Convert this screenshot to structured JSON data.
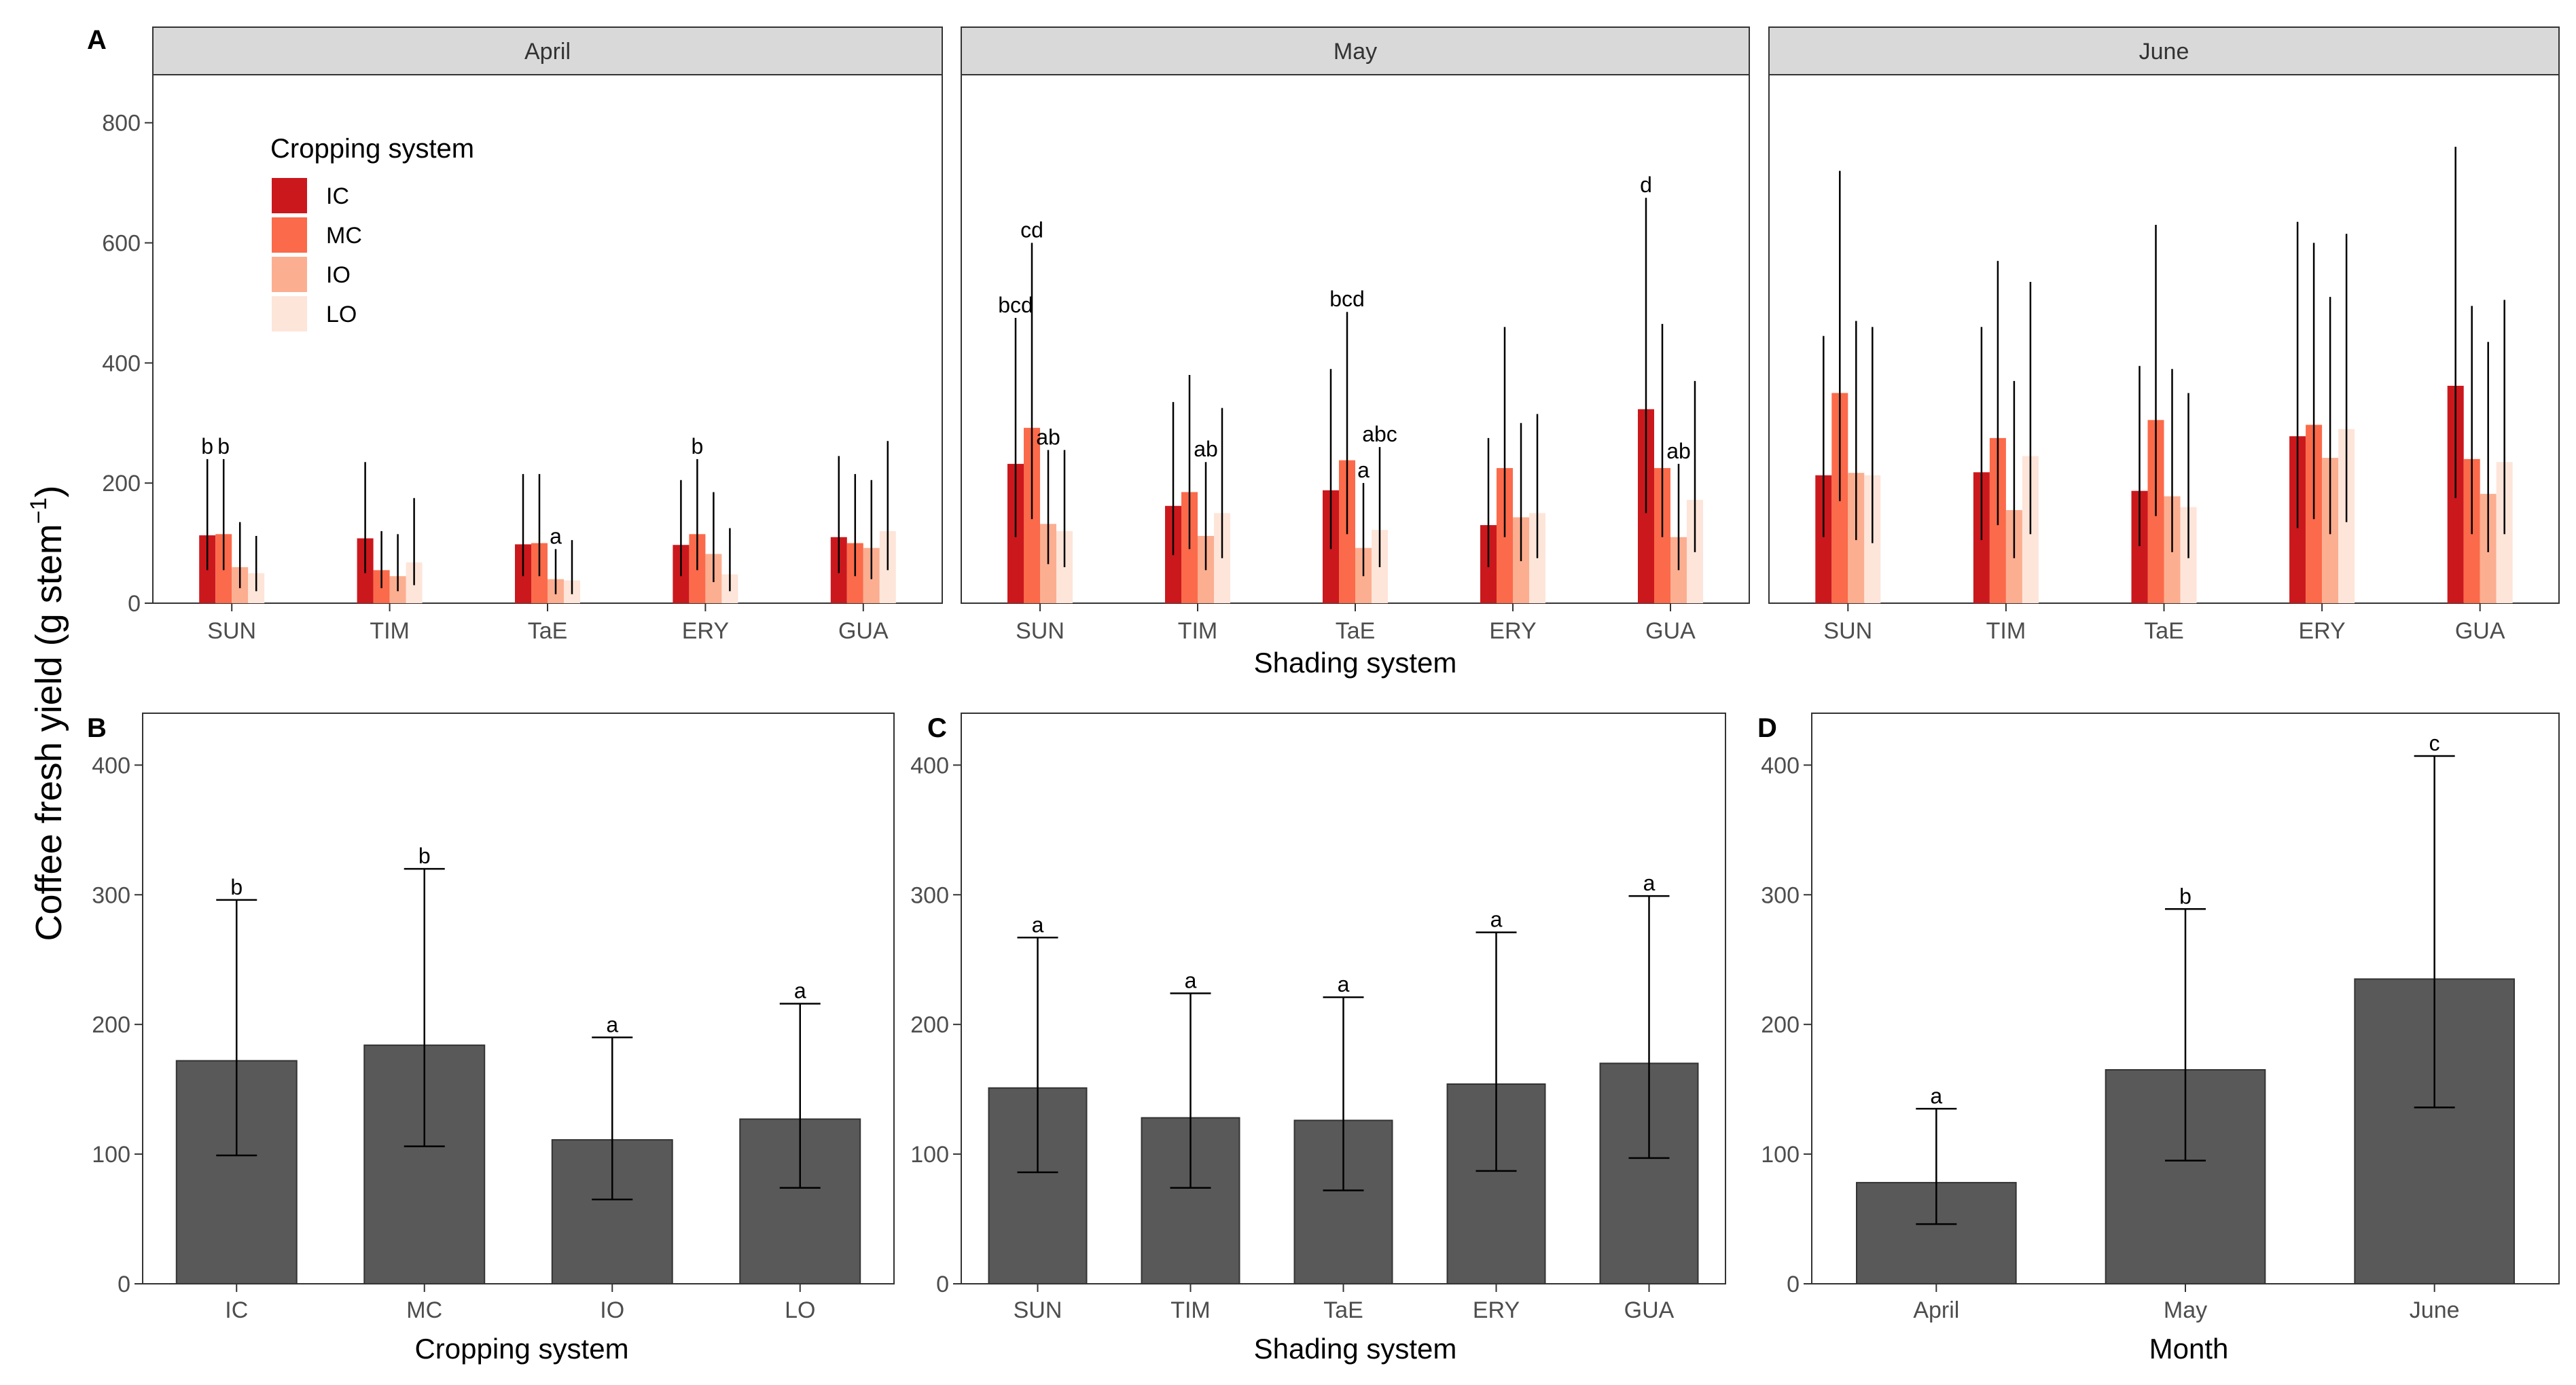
{
  "figure": {
    "y_axis_label": "Coffee fresh yield (g stem",
    "y_axis_label_exponent": "−1",
    "y_axis_label_close": ")"
  },
  "colors": {
    "IC": "#cb181d",
    "MC": "#fb6a4a",
    "IO": "#fcae91",
    "LO": "#fee5d9",
    "single_bar": "#595959",
    "strip_bg": "#d9d9d9"
  },
  "legend": {
    "title": "Cropping system",
    "items": [
      "IC",
      "MC",
      "IO",
      "LO"
    ]
  },
  "chart_data": [
    {
      "panel": "A",
      "type": "bar",
      "subtype": "grouped-faceted",
      "xlabel": "Shading system",
      "ylim": [
        0,
        880
      ],
      "yticks": [
        0,
        200,
        400,
        600,
        800
      ],
      "categories": [
        "SUN",
        "TIM",
        "TaE",
        "ERY",
        "GUA"
      ],
      "series_names": [
        "IC",
        "MC",
        "IO",
        "LO"
      ],
      "facets": [
        {
          "title": "April",
          "series": [
            {
              "name": "IC",
              "values": [
                113,
                108,
                98,
                97,
                110
              ],
              "lower": [
                55,
                50,
                45,
                45,
                50
              ],
              "upper": [
                240,
                235,
                215,
                205,
                245
              ],
              "letters": [
                "b",
                "",
                "",
                "",
                ""
              ]
            },
            {
              "name": "MC",
              "values": [
                115,
                55,
                100,
                115,
                100
              ],
              "lower": [
                55,
                25,
                45,
                55,
                45
              ],
              "upper": [
                240,
                120,
                215,
                240,
                215
              ],
              "letters": [
                "b",
                "",
                "",
                "b",
                ""
              ]
            },
            {
              "name": "IO",
              "values": [
                60,
                45,
                40,
                82,
                92
              ],
              "lower": [
                25,
                20,
                15,
                35,
                40
              ],
              "upper": [
                135,
                115,
                90,
                185,
                205
              ],
              "letters": [
                "",
                "",
                "a",
                "",
                ""
              ]
            },
            {
              "name": "LO",
              "values": [
                50,
                68,
                38,
                48,
                120
              ],
              "lower": [
                20,
                30,
                15,
                20,
                55
              ],
              "upper": [
                112,
                175,
                105,
                125,
                270
              ],
              "letters": [
                "",
                "",
                "",
                "",
                ""
              ]
            }
          ]
        },
        {
          "title": "May",
          "series": [
            {
              "name": "IC",
              "values": [
                232,
                162,
                188,
                130,
                323
              ],
              "lower": [
                110,
                80,
                90,
                60,
                150
              ],
              "upper": [
                475,
                335,
                390,
                275,
                675
              ],
              "letters": [
                "bcd",
                "",
                "",
                "",
                "d"
              ]
            },
            {
              "name": "MC",
              "values": [
                292,
                185,
                238,
                225,
                225
              ],
              "lower": [
                140,
                90,
                115,
                110,
                110
              ],
              "upper": [
                600,
                380,
                485,
                460,
                465
              ],
              "letters": [
                "cd",
                "",
                "bcd",
                "",
                ""
              ]
            },
            {
              "name": "IO",
              "values": [
                132,
                112,
                92,
                143,
                110
              ],
              "lower": [
                65,
                55,
                45,
                70,
                55
              ],
              "upper": [
                255,
                235,
                200,
                300,
                232
              ],
              "letters": [
                "ab",
                "ab",
                "a",
                "",
                "ab"
              ]
            },
            {
              "name": "LO",
              "values": [
                120,
                150,
                122,
                150,
                172
              ],
              "lower": [
                60,
                75,
                60,
                75,
                85
              ],
              "upper": [
                255,
                325,
                260,
                315,
                370
              ],
              "letters": [
                "",
                "",
                "abc",
                "",
                ""
              ]
            }
          ]
        },
        {
          "title": "June",
          "series": [
            {
              "name": "IC",
              "values": [
                213,
                218,
                187,
                278,
                362
              ],
              "lower": [
                110,
                105,
                95,
                125,
                175
              ],
              "upper": [
                445,
                460,
                395,
                635,
                760
              ],
              "letters": [
                "",
                "",
                "",
                "",
                ""
              ]
            },
            {
              "name": "MC",
              "values": [
                350,
                275,
                305,
                297,
                240
              ],
              "lower": [
                170,
                130,
                145,
                140,
                115
              ],
              "upper": [
                720,
                570,
                630,
                600,
                495
              ],
              "letters": [
                "",
                "",
                "",
                "",
                ""
              ]
            },
            {
              "name": "IO",
              "values": [
                217,
                155,
                178,
                242,
                182
              ],
              "lower": [
                105,
                75,
                85,
                115,
                85
              ],
              "upper": [
                470,
                370,
                390,
                510,
                435
              ],
              "letters": [
                "",
                "",
                "",
                "",
                ""
              ]
            },
            {
              "name": "LO",
              "values": [
                213,
                245,
                160,
                290,
                235
              ],
              "lower": [
                100,
                115,
                75,
                135,
                115
              ],
              "upper": [
                460,
                535,
                350,
                615,
                505
              ],
              "letters": [
                "",
                "",
                "",
                "",
                ""
              ]
            }
          ]
        }
      ]
    },
    {
      "panel": "B",
      "type": "bar",
      "xlabel": "Cropping system",
      "ylim": [
        0,
        440
      ],
      "yticks": [
        0,
        100,
        200,
        300,
        400
      ],
      "categories": [
        "IC",
        "MC",
        "IO",
        "LO"
      ],
      "values": [
        172,
        184,
        111,
        127
      ],
      "lower": [
        99,
        106,
        65,
        74
      ],
      "upper": [
        296,
        320,
        190,
        216
      ],
      "letters": [
        "b",
        "b",
        "a",
        "a"
      ]
    },
    {
      "panel": "C",
      "type": "bar",
      "xlabel": "Shading system",
      "ylim": [
        0,
        440
      ],
      "yticks": [
        0,
        100,
        200,
        300,
        400
      ],
      "categories": [
        "SUN",
        "TIM",
        "TaE",
        "ERY",
        "GUA"
      ],
      "values": [
        151,
        128,
        126,
        154,
        170
      ],
      "lower": [
        86,
        74,
        72,
        87,
        97
      ],
      "upper": [
        267,
        224,
        221,
        271,
        299
      ],
      "letters": [
        "a",
        "a",
        "a",
        "a",
        "a"
      ]
    },
    {
      "panel": "D",
      "type": "bar",
      "xlabel": "Month",
      "ylim": [
        0,
        440
      ],
      "yticks": [
        0,
        100,
        200,
        300,
        400
      ],
      "categories": [
        "April",
        "May",
        "June"
      ],
      "values": [
        78,
        165,
        235
      ],
      "lower": [
        46,
        95,
        136
      ],
      "upper": [
        135,
        289,
        407
      ],
      "letters": [
        "a",
        "b",
        "c"
      ]
    }
  ]
}
